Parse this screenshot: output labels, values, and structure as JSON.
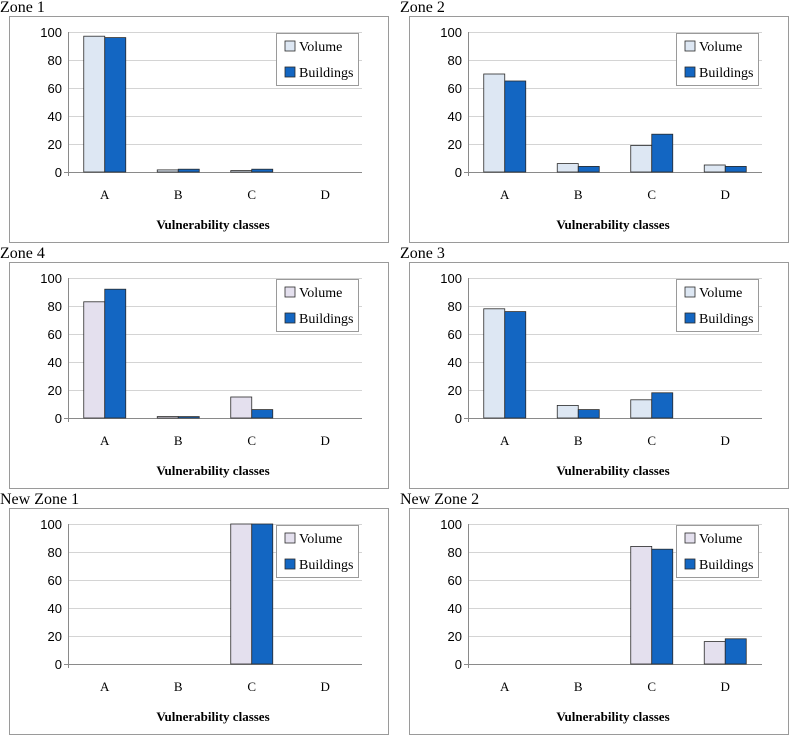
{
  "colors": {
    "volume": "#dde7f3",
    "volume_alt": "#e4e0ee",
    "buildings": "#1366c2"
  },
  "chart_data": [
    {
      "type": "bar",
      "title": "Zone 1",
      "categories": [
        "A",
        "B",
        "C",
        "D"
      ],
      "series": [
        {
          "name": "Volume",
          "values": [
            97,
            1.5,
            1,
            0
          ]
        },
        {
          "name": "Buildings",
          "values": [
            96,
            2,
            2,
            0
          ]
        }
      ],
      "xlabel": "Vulnerability classes",
      "ylabel": "",
      "ylim": [
        0,
        100
      ],
      "yticks": [
        0,
        20,
        40,
        60,
        80,
        100
      ],
      "grid": true,
      "legend": "top-right"
    },
    {
      "type": "bar",
      "title": "Zone 2",
      "categories": [
        "A",
        "B",
        "C",
        "D"
      ],
      "series": [
        {
          "name": "Volume",
          "values": [
            70,
            6,
            19,
            5
          ]
        },
        {
          "name": "Buildings",
          "values": [
            65,
            4,
            27,
            4
          ]
        }
      ],
      "xlabel": "Vulnerability classes",
      "ylabel": "",
      "ylim": [
        0,
        100
      ],
      "yticks": [
        0,
        20,
        40,
        60,
        80,
        100
      ],
      "grid": true,
      "legend": "top-right"
    },
    {
      "type": "bar",
      "title": "Zone 4",
      "categories": [
        "A",
        "B",
        "C",
        "D"
      ],
      "series": [
        {
          "name": "Volume",
          "values": [
            83,
            1,
            15,
            0
          ]
        },
        {
          "name": "Buildings",
          "values": [
            92,
            1,
            6,
            0
          ]
        }
      ],
      "xlabel": "Vulnerability classes",
      "ylabel": "",
      "ylim": [
        0,
        100
      ],
      "yticks": [
        0,
        20,
        40,
        60,
        80,
        100
      ],
      "grid": true,
      "legend": "top-right"
    },
    {
      "type": "bar",
      "title": "Zone 3",
      "categories": [
        "A",
        "B",
        "C",
        "D"
      ],
      "series": [
        {
          "name": "Volume",
          "values": [
            78,
            9,
            13,
            0
          ]
        },
        {
          "name": "Buildings",
          "values": [
            76,
            6,
            18,
            0
          ]
        }
      ],
      "xlabel": "Vulnerability classes",
      "ylabel": "",
      "ylim": [
        0,
        100
      ],
      "yticks": [
        0,
        20,
        40,
        60,
        80,
        100
      ],
      "grid": true,
      "legend": "top-right"
    },
    {
      "type": "bar",
      "title": "New Zone 1",
      "categories": [
        "A",
        "B",
        "C",
        "D"
      ],
      "series": [
        {
          "name": "Volume",
          "values": [
            0,
            0,
            100,
            0
          ]
        },
        {
          "name": "Buildings",
          "values": [
            0,
            0,
            100,
            0
          ]
        }
      ],
      "xlabel": "Vulnerability classes",
      "ylabel": "",
      "ylim": [
        0,
        100
      ],
      "yticks": [
        0,
        20,
        40,
        60,
        80,
        100
      ],
      "grid": true,
      "legend": "top-right"
    },
    {
      "type": "bar",
      "title": "New Zone 2",
      "categories": [
        "A",
        "B",
        "C",
        "D"
      ],
      "series": [
        {
          "name": "Volume",
          "values": [
            0,
            0,
            84,
            16
          ]
        },
        {
          "name": "Buildings",
          "values": [
            0,
            0,
            82,
            18
          ]
        }
      ],
      "xlabel": "Vulnerability classes",
      "ylabel": "",
      "ylim": [
        0,
        100
      ],
      "yticks": [
        0,
        20,
        40,
        60,
        80,
        100
      ],
      "grid": true,
      "legend": "top-right"
    }
  ]
}
